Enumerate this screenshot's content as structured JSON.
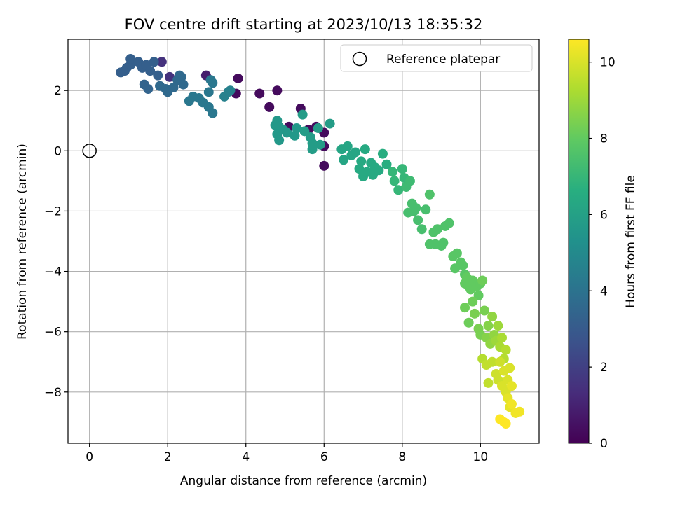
{
  "chart_data": {
    "type": "scatter",
    "title": "FOV centre drift starting at 2023/10/13 18:35:32",
    "xlabel": "Angular distance from reference (arcmin)",
    "ylabel": "Rotation from reference (arcmin)",
    "xlim": [
      -0.55,
      11.5
    ],
    "ylim": [
      -9.7,
      3.7
    ],
    "xticks": [
      "0",
      "2",
      "4",
      "6",
      "8",
      "10"
    ],
    "yticks": [
      "−8",
      "−6",
      "−4",
      "−2",
      "0",
      "2"
    ],
    "grid": true,
    "legend": {
      "label": "Reference platepar",
      "position": "top-right"
    },
    "reference_point": {
      "x": 0,
      "y": 0
    },
    "colorbar": {
      "label": "Hours from first FF file",
      "colormap": "viridis",
      "range": [
        0,
        10.6
      ],
      "ticks": [
        "0",
        "2",
        "4",
        "6",
        "8",
        "10"
      ]
    },
    "points": [
      {
        "x": 5.4,
        "y": 1.4,
        "c": 0.3
      },
      {
        "x": 5.8,
        "y": 0.8,
        "c": 0.3
      },
      {
        "x": 6.0,
        "y": 0.6,
        "c": 0.3
      },
      {
        "x": 6.0,
        "y": -0.5,
        "c": 0.3
      },
      {
        "x": 5.6,
        "y": 0.7,
        "c": 0.3
      },
      {
        "x": 4.8,
        "y": 2.0,
        "c": 0.3
      },
      {
        "x": 4.35,
        "y": 1.9,
        "c": 0.3
      },
      {
        "x": 3.8,
        "y": 2.4,
        "c": 0.3
      },
      {
        "x": 3.75,
        "y": 1.9,
        "c": 0.3
      },
      {
        "x": 4.6,
        "y": 1.45,
        "c": 0.3
      },
      {
        "x": 5.1,
        "y": 0.8,
        "c": 0.3
      },
      {
        "x": 6.0,
        "y": 0.15,
        "c": 0.3
      },
      {
        "x": 2.98,
        "y": 2.5,
        "c": 0.8
      },
      {
        "x": 1.85,
        "y": 2.95,
        "c": 1.5
      },
      {
        "x": 2.05,
        "y": 2.45,
        "c": 1.5
      },
      {
        "x": 0.8,
        "y": 2.6,
        "c": 3.2
      },
      {
        "x": 0.9,
        "y": 2.65,
        "c": 3.2
      },
      {
        "x": 0.95,
        "y": 2.75,
        "c": 3.2
      },
      {
        "x": 1.05,
        "y": 2.85,
        "c": 3.2
      },
      {
        "x": 1.05,
        "y": 3.05,
        "c": 3.2
      },
      {
        "x": 1.25,
        "y": 2.95,
        "c": 3.2
      },
      {
        "x": 1.35,
        "y": 2.75,
        "c": 3.2
      },
      {
        "x": 1.45,
        "y": 2.85,
        "c": 3.2
      },
      {
        "x": 1.55,
        "y": 2.65,
        "c": 3.2
      },
      {
        "x": 1.65,
        "y": 2.95,
        "c": 3.2
      },
      {
        "x": 1.75,
        "y": 2.5,
        "c": 3.2
      },
      {
        "x": 1.4,
        "y": 2.2,
        "c": 3.4
      },
      {
        "x": 1.5,
        "y": 2.05,
        "c": 3.4
      },
      {
        "x": 1.8,
        "y": 2.15,
        "c": 3.6
      },
      {
        "x": 1.95,
        "y": 2.05,
        "c": 3.6
      },
      {
        "x": 2.0,
        "y": 1.95,
        "c": 3.6
      },
      {
        "x": 2.15,
        "y": 2.1,
        "c": 3.6
      },
      {
        "x": 2.25,
        "y": 2.35,
        "c": 3.6
      },
      {
        "x": 2.3,
        "y": 2.5,
        "c": 3.6
      },
      {
        "x": 2.35,
        "y": 2.45,
        "c": 3.6
      },
      {
        "x": 2.4,
        "y": 2.2,
        "c": 3.6
      },
      {
        "x": 2.55,
        "y": 1.65,
        "c": 4.2
      },
      {
        "x": 2.65,
        "y": 1.8,
        "c": 4.2
      },
      {
        "x": 2.8,
        "y": 1.75,
        "c": 4.2
      },
      {
        "x": 2.9,
        "y": 1.6,
        "c": 4.2
      },
      {
        "x": 3.05,
        "y": 1.45,
        "c": 4.2
      },
      {
        "x": 3.15,
        "y": 1.25,
        "c": 4.2
      },
      {
        "x": 3.05,
        "y": 1.95,
        "c": 4.2
      },
      {
        "x": 3.1,
        "y": 2.35,
        "c": 4.2
      },
      {
        "x": 3.15,
        "y": 2.25,
        "c": 4.2
      },
      {
        "x": 3.45,
        "y": 1.8,
        "c": 4.6
      },
      {
        "x": 3.55,
        "y": 1.95,
        "c": 4.6
      },
      {
        "x": 3.6,
        "y": 2.0,
        "c": 4.6
      },
      {
        "x": 4.75,
        "y": 0.85,
        "c": 5.6
      },
      {
        "x": 4.8,
        "y": 1.0,
        "c": 5.6
      },
      {
        "x": 4.85,
        "y": 0.8,
        "c": 5.6
      },
      {
        "x": 4.8,
        "y": 0.55,
        "c": 5.6
      },
      {
        "x": 4.85,
        "y": 0.35,
        "c": 5.6
      },
      {
        "x": 4.95,
        "y": 0.7,
        "c": 5.6
      },
      {
        "x": 5.05,
        "y": 0.6,
        "c": 5.6
      },
      {
        "x": 5.25,
        "y": 0.5,
        "c": 5.6
      },
      {
        "x": 5.3,
        "y": 0.75,
        "c": 5.6
      },
      {
        "x": 5.45,
        "y": 1.2,
        "c": 5.8
      },
      {
        "x": 5.5,
        "y": 0.65,
        "c": 5.8
      },
      {
        "x": 5.65,
        "y": 0.45,
        "c": 5.8
      },
      {
        "x": 5.7,
        "y": 0.25,
        "c": 5.8
      },
      {
        "x": 5.7,
        "y": 0.05,
        "c": 5.8
      },
      {
        "x": 5.85,
        "y": 0.75,
        "c": 5.8
      },
      {
        "x": 5.9,
        "y": 0.2,
        "c": 5.8
      },
      {
        "x": 6.15,
        "y": 0.9,
        "c": 5.8
      },
      {
        "x": 6.45,
        "y": 0.05,
        "c": 6.2
      },
      {
        "x": 6.5,
        "y": -0.3,
        "c": 6.2
      },
      {
        "x": 6.6,
        "y": 0.15,
        "c": 6.2
      },
      {
        "x": 6.7,
        "y": -0.15,
        "c": 6.2
      },
      {
        "x": 6.8,
        "y": -0.05,
        "c": 6.2
      },
      {
        "x": 6.9,
        "y": -0.6,
        "c": 6.4
      },
      {
        "x": 6.95,
        "y": -0.35,
        "c": 6.4
      },
      {
        "x": 7.0,
        "y": -0.85,
        "c": 6.4
      },
      {
        "x": 7.05,
        "y": 0.05,
        "c": 6.4
      },
      {
        "x": 7.1,
        "y": -0.7,
        "c": 6.4
      },
      {
        "x": 7.2,
        "y": -0.4,
        "c": 6.4
      },
      {
        "x": 7.25,
        "y": -0.8,
        "c": 6.4
      },
      {
        "x": 7.3,
        "y": -0.55,
        "c": 6.4
      },
      {
        "x": 7.4,
        "y": -0.65,
        "c": 6.4
      },
      {
        "x": 7.5,
        "y": -0.1,
        "c": 6.6
      },
      {
        "x": 7.6,
        "y": -0.45,
        "c": 6.6
      },
      {
        "x": 7.75,
        "y": -0.7,
        "c": 7.0
      },
      {
        "x": 7.8,
        "y": -1.0,
        "c": 7.0
      },
      {
        "x": 7.9,
        "y": -1.3,
        "c": 7.0
      },
      {
        "x": 8.0,
        "y": -0.6,
        "c": 7.0
      },
      {
        "x": 8.05,
        "y": -0.9,
        "c": 7.0
      },
      {
        "x": 8.1,
        "y": -1.2,
        "c": 7.2
      },
      {
        "x": 8.2,
        "y": -1.0,
        "c": 7.2
      },
      {
        "x": 8.25,
        "y": -1.75,
        "c": 7.4
      },
      {
        "x": 8.15,
        "y": -2.05,
        "c": 7.4
      },
      {
        "x": 8.3,
        "y": -2.0,
        "c": 7.4
      },
      {
        "x": 8.35,
        "y": -1.9,
        "c": 7.4
      },
      {
        "x": 8.4,
        "y": -2.3,
        "c": 7.4
      },
      {
        "x": 8.5,
        "y": -2.6,
        "c": 7.4
      },
      {
        "x": 8.6,
        "y": -1.95,
        "c": 7.4
      },
      {
        "x": 8.7,
        "y": -1.45,
        "c": 7.6
      },
      {
        "x": 8.7,
        "y": -3.1,
        "c": 7.6
      },
      {
        "x": 8.8,
        "y": -2.7,
        "c": 7.6
      },
      {
        "x": 8.85,
        "y": -3.1,
        "c": 7.6
      },
      {
        "x": 8.9,
        "y": -2.6,
        "c": 7.6
      },
      {
        "x": 9.0,
        "y": -3.15,
        "c": 7.6
      },
      {
        "x": 9.1,
        "y": -2.5,
        "c": 7.6
      },
      {
        "x": 9.2,
        "y": -2.4,
        "c": 7.6
      },
      {
        "x": 9.05,
        "y": -3.05,
        "c": 7.6
      },
      {
        "x": 9.3,
        "y": -3.5,
        "c": 7.8
      },
      {
        "x": 9.35,
        "y": -3.9,
        "c": 7.8
      },
      {
        "x": 9.4,
        "y": -3.4,
        "c": 7.8
      },
      {
        "x": 9.5,
        "y": -3.7,
        "c": 7.8
      },
      {
        "x": 9.55,
        "y": -3.8,
        "c": 7.8
      },
      {
        "x": 9.6,
        "y": -4.1,
        "c": 7.8
      },
      {
        "x": 9.6,
        "y": -4.4,
        "c": 8.0
      },
      {
        "x": 9.65,
        "y": -4.2,
        "c": 8.0
      },
      {
        "x": 9.7,
        "y": -4.5,
        "c": 8.0
      },
      {
        "x": 9.75,
        "y": -4.6,
        "c": 8.0
      },
      {
        "x": 9.8,
        "y": -4.3,
        "c": 8.0
      },
      {
        "x": 9.9,
        "y": -4.5,
        "c": 8.0
      },
      {
        "x": 9.95,
        "y": -4.8,
        "c": 8.0
      },
      {
        "x": 10.0,
        "y": -4.4,
        "c": 8.0
      },
      {
        "x": 10.05,
        "y": -4.3,
        "c": 8.2
      },
      {
        "x": 9.6,
        "y": -5.2,
        "c": 8.2
      },
      {
        "x": 9.7,
        "y": -5.7,
        "c": 8.2
      },
      {
        "x": 9.8,
        "y": -5.0,
        "c": 8.2
      },
      {
        "x": 9.85,
        "y": -5.4,
        "c": 8.4
      },
      {
        "x": 9.95,
        "y": -5.9,
        "c": 8.4
      },
      {
        "x": 10.0,
        "y": -6.1,
        "c": 8.4
      },
      {
        "x": 10.1,
        "y": -5.3,
        "c": 8.4
      },
      {
        "x": 10.15,
        "y": -6.2,
        "c": 8.6
      },
      {
        "x": 10.2,
        "y": -5.8,
        "c": 8.6
      },
      {
        "x": 10.25,
        "y": -6.4,
        "c": 8.8
      },
      {
        "x": 10.3,
        "y": -5.5,
        "c": 8.8
      },
      {
        "x": 10.35,
        "y": -6.1,
        "c": 8.8
      },
      {
        "x": 10.4,
        "y": -6.3,
        "c": 9.0
      },
      {
        "x": 10.45,
        "y": -5.8,
        "c": 9.0
      },
      {
        "x": 10.5,
        "y": -6.5,
        "c": 9.2
      },
      {
        "x": 10.55,
        "y": -6.2,
        "c": 9.2
      },
      {
        "x": 10.6,
        "y": -6.9,
        "c": 9.4
      },
      {
        "x": 10.65,
        "y": -6.6,
        "c": 9.4
      },
      {
        "x": 10.05,
        "y": -6.9,
        "c": 9.4
      },
      {
        "x": 10.15,
        "y": -7.1,
        "c": 9.6
      },
      {
        "x": 10.2,
        "y": -7.7,
        "c": 9.6
      },
      {
        "x": 10.3,
        "y": -7.0,
        "c": 9.6
      },
      {
        "x": 10.4,
        "y": -7.4,
        "c": 9.8
      },
      {
        "x": 10.45,
        "y": -7.6,
        "c": 9.8
      },
      {
        "x": 10.5,
        "y": -7.0,
        "c": 9.8
      },
      {
        "x": 10.55,
        "y": -7.8,
        "c": 10.0
      },
      {
        "x": 10.6,
        "y": -7.3,
        "c": 10.0
      },
      {
        "x": 10.65,
        "y": -8.0,
        "c": 10.0
      },
      {
        "x": 10.7,
        "y": -7.6,
        "c": 10.0
      },
      {
        "x": 10.75,
        "y": -7.2,
        "c": 10.0
      },
      {
        "x": 10.8,
        "y": -7.8,
        "c": 10.2
      },
      {
        "x": 10.7,
        "y": -8.2,
        "c": 10.2
      },
      {
        "x": 10.75,
        "y": -8.5,
        "c": 10.2
      },
      {
        "x": 10.8,
        "y": -8.4,
        "c": 10.4
      },
      {
        "x": 10.9,
        "y": -8.7,
        "c": 10.4
      },
      {
        "x": 11.0,
        "y": -8.65,
        "c": 10.4
      },
      {
        "x": 10.5,
        "y": -8.9,
        "c": 10.6
      },
      {
        "x": 10.6,
        "y": -9.0,
        "c": 10.6
      },
      {
        "x": 10.65,
        "y": -9.05,
        "c": 10.6
      }
    ]
  }
}
